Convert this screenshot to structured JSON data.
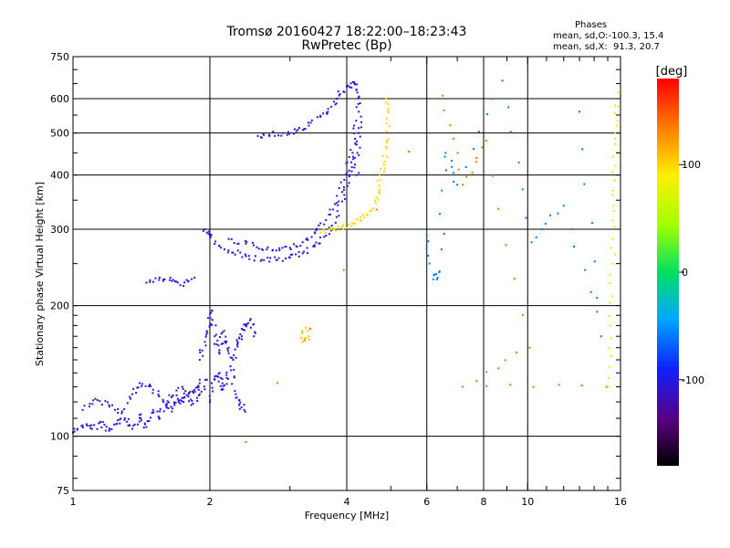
{
  "title": {
    "line1": "Tromsø 20160427 18:22:00–18:23:43",
    "line2": "RwPretec (Bp)"
  },
  "phases": {
    "title": "Phases",
    "o_stats": "mean, sd,O:-100.3, 15.4",
    "x_stats": "mean, sd,X:  91.3, 20.7"
  },
  "colorbar": {
    "unit_label": "[deg]",
    "ticks": [
      {
        "value": 100,
        "label": "100"
      },
      {
        "value": 0,
        "label": "0"
      },
      {
        "value": -100,
        "label": "-100"
      }
    ],
    "range": [
      -180,
      180
    ]
  },
  "chart_data": {
    "type": "scatter",
    "xlabel": "Frequency [MHz]",
    "ylabel": "Stationary phase Virtual Height [km]",
    "xscale": "log",
    "yscale": "log",
    "xlim": [
      1,
      16
    ],
    "ylim": [
      75,
      750
    ],
    "xticks": [
      {
        "value": 1,
        "label": "1"
      },
      {
        "value": 2,
        "label": "2"
      },
      {
        "value": 4,
        "label": "4"
      },
      {
        "value": 6,
        "label": "6"
      },
      {
        "value": 8,
        "label": "8"
      },
      {
        "value": 10,
        "label": "10"
      },
      {
        "value": 16,
        "label": "16"
      }
    ],
    "yticks": [
      {
        "value": 75,
        "label": "75"
      },
      {
        "value": 100,
        "label": "100"
      },
      {
        "value": 200,
        "label": "200"
      },
      {
        "value": 300,
        "label": "300"
      },
      {
        "value": 400,
        "label": "400"
      },
      {
        "value": 500,
        "label": "500"
      },
      {
        "value": 600,
        "label": "600"
      },
      {
        "value": 750,
        "label": "750"
      }
    ],
    "major_vlines": [
      2,
      4,
      6,
      8,
      10
    ],
    "major_hlines": [
      100,
      200,
      300,
      400,
      500,
      600
    ],
    "color_by": "phase (deg)",
    "series": [
      {
        "traces": [
          {
            "phase": -100,
            "points": [
              [
                1.0,
                102
              ],
              [
                1.05,
                106
              ],
              [
                1.1,
                104
              ],
              [
                1.15,
                108
              ],
              [
                1.2,
                103
              ],
              [
                1.25,
                107
              ],
              [
                1.3,
                110
              ],
              [
                1.35,
                104
              ],
              [
                1.4,
                112
              ],
              [
                1.45,
                105
              ],
              [
                1.5,
                115
              ],
              [
                1.55,
                110
              ],
              [
                1.6,
                118
              ],
              [
                1.65,
                114
              ],
              [
                1.7,
                122
              ],
              [
                1.75,
                120
              ],
              [
                1.8,
                126
              ],
              [
                1.85,
                128
              ],
              [
                1.9,
                135
              ]
            ]
          },
          {
            "phase": -105,
            "points": [
              [
                1.05,
                115
              ],
              [
                1.12,
                122
              ],
              [
                1.2,
                118
              ],
              [
                1.28,
                113
              ],
              [
                1.35,
                125
              ],
              [
                1.42,
                132
              ],
              [
                1.5,
                128
              ],
              [
                1.58,
                120
              ],
              [
                1.66,
                124
              ],
              [
                1.74,
                130
              ],
              [
                1.82,
                118
              ],
              [
                1.9,
                125
              ],
              [
                1.97,
                135
              ]
            ]
          },
          {
            "phase": -100,
            "points": [
              [
                1.9,
                150
              ],
              [
                1.95,
                165
              ],
              [
                2.0,
                180
              ],
              [
                2.02,
                195
              ],
              [
                2.05,
                170
              ],
              [
                2.1,
                155
              ],
              [
                2.15,
                175
              ],
              [
                2.2,
                160
              ],
              [
                2.25,
                150
              ],
              [
                2.3,
                165
              ],
              [
                2.35,
                170
              ],
              [
                2.4,
                180
              ],
              [
                2.45,
                185
              ],
              [
                2.5,
                170
              ]
            ]
          },
          {
            "phase": -98,
            "points": [
              [
                2.0,
                120
              ],
              [
                2.05,
                135
              ],
              [
                2.1,
                140
              ],
              [
                2.12,
                128
              ],
              [
                2.18,
                132
              ],
              [
                2.22,
                145
              ],
              [
                2.28,
                125
              ],
              [
                2.32,
                118
              ],
              [
                2.38,
                115
              ]
            ]
          },
          {
            "phase": -100,
            "points": [
              [
                1.45,
                226
              ],
              [
                1.55,
                232
              ],
              [
                1.65,
                228
              ],
              [
                1.75,
                222
              ],
              [
                1.85,
                232
              ]
            ]
          },
          {
            "phase": -102,
            "points": [
              [
                1.95,
                300
              ],
              [
                2.0,
                290
              ],
              [
                2.1,
                275
              ],
              [
                2.25,
                265
              ],
              [
                2.4,
                260
              ],
              [
                2.6,
                255
              ],
              [
                2.8,
                255
              ],
              [
                3.0,
                258
              ],
              [
                3.2,
                264
              ],
              [
                3.4,
                274
              ],
              [
                3.6,
                290
              ],
              [
                3.8,
                320
              ],
              [
                3.95,
                360
              ],
              [
                4.05,
                400
              ],
              [
                4.12,
                450
              ],
              [
                4.15,
                520
              ]
            ]
          },
          {
            "phase": -100,
            "points": [
              [
                2.2,
                285
              ],
              [
                2.4,
                278
              ],
              [
                2.6,
                270
              ],
              [
                2.8,
                268
              ],
              [
                3.0,
                272
              ],
              [
                3.2,
                280
              ],
              [
                3.4,
                295
              ],
              [
                3.6,
                315
              ],
              [
                3.8,
                345
              ],
              [
                3.95,
                390
              ],
              [
                4.05,
                440
              ]
            ]
          },
          {
            "phase": -101,
            "points": [
              [
                2.55,
                492
              ],
              [
                2.7,
                495
              ],
              [
                2.9,
                500
              ],
              [
                3.1,
                505
              ],
              [
                3.3,
                520
              ],
              [
                3.5,
                545
              ],
              [
                3.7,
                575
              ],
              [
                3.85,
                610
              ],
              [
                4.0,
                640
              ],
              [
                4.15,
                655
              ],
              [
                4.2,
                630
              ]
            ]
          },
          {
            "phase": -100,
            "points": [
              [
                4.2,
                400
              ],
              [
                4.22,
                450
              ],
              [
                4.25,
                500
              ],
              [
                4.25,
                560
              ],
              [
                4.22,
                620
              ]
            ]
          },
          {
            "phase": 100,
            "points": [
              [
                3.5,
                295
              ],
              [
                3.7,
                300
              ],
              [
                3.9,
                302
              ],
              [
                4.1,
                305
              ],
              [
                4.3,
                315
              ],
              [
                4.5,
                330
              ],
              [
                4.65,
                355
              ],
              [
                4.75,
                390
              ],
              [
                4.85,
                430
              ],
              [
                4.9,
                480
              ],
              [
                4.9,
                540
              ],
              [
                4.88,
                600
              ]
            ]
          },
          {
            "phase": 110,
            "points": [
              [
                3.3,
                170
              ],
              [
                3.2,
                165
              ],
              [
                3.25,
                178
              ]
            ]
          },
          {
            "phase": 95,
            "points": [
              [
                15.0,
                130
              ],
              [
                15.2,
                180
              ],
              [
                15.4,
                250
              ],
              [
                15.5,
                330
              ],
              [
                15.6,
                420
              ],
              [
                15.7,
                520
              ],
              [
                15.8,
                620
              ]
            ]
          },
          {
            "phase": -60,
            "points": [
              [
                6.0,
                290
              ],
              [
                6.2,
                230
              ],
              [
                6.4,
                240
              ],
              [
                6.6,
                450
              ],
              [
                7.0,
                380
              ],
              [
                8.8,
                660
              ],
              [
                10.2,
                280
              ],
              [
                12.0,
                340
              ],
              [
                14.5,
                170
              ],
              [
                13.0,
                560
              ]
            ]
          },
          {
            "phase": 140,
            "points": [
              [
                2.4,
                97
              ],
              [
                6.5,
                610
              ],
              [
                7.2,
                380
              ],
              [
                8.1,
                480
              ],
              [
                10.1,
                160
              ],
              [
                7.2,
                130
              ],
              [
                14.9,
                130
              ]
            ]
          }
        ]
      }
    ]
  }
}
